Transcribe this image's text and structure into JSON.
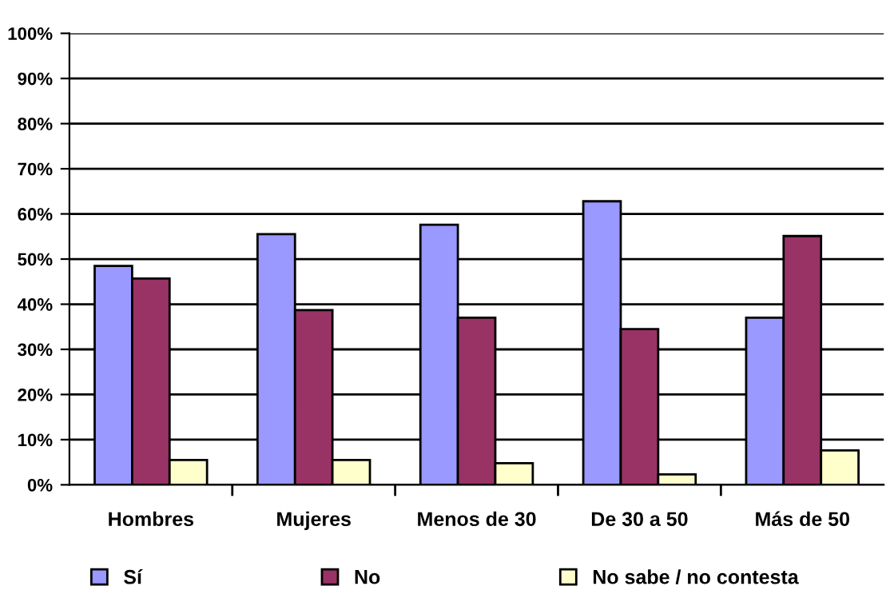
{
  "chart_data": {
    "type": "bar",
    "categories": [
      "Hombres",
      "Mujeres",
      "Menos de 30",
      "De 30 a 50",
      "Más de 50"
    ],
    "series": [
      {
        "name": "Sí",
        "color": "#9999ff",
        "values": [
          48.5,
          55.5,
          57.6,
          62.8,
          37.0
        ]
      },
      {
        "name": "No",
        "color": "#993366",
        "values": [
          45.7,
          38.7,
          37.0,
          34.5,
          55.1
        ]
      },
      {
        "name": "No sabe / no contesta",
        "color": "#ffffcc",
        "values": [
          5.5,
          5.5,
          4.8,
          2.3,
          7.6
        ]
      }
    ],
    "ylim": [
      0,
      100
    ],
    "yticks": [
      {
        "value": 0,
        "label": "0%"
      },
      {
        "value": 10,
        "label": "10%"
      },
      {
        "value": 20,
        "label": "20%"
      },
      {
        "value": 30,
        "label": "30%"
      },
      {
        "value": 40,
        "label": "40%"
      },
      {
        "value": 50,
        "label": "50%"
      },
      {
        "value": 60,
        "label": "60%"
      },
      {
        "value": 70,
        "label": "70%"
      },
      {
        "value": 80,
        "label": "80%"
      },
      {
        "value": 90,
        "label": "90%"
      },
      {
        "value": 100,
        "label": "100%"
      }
    ],
    "grid": "y",
    "legend": "bottom"
  }
}
